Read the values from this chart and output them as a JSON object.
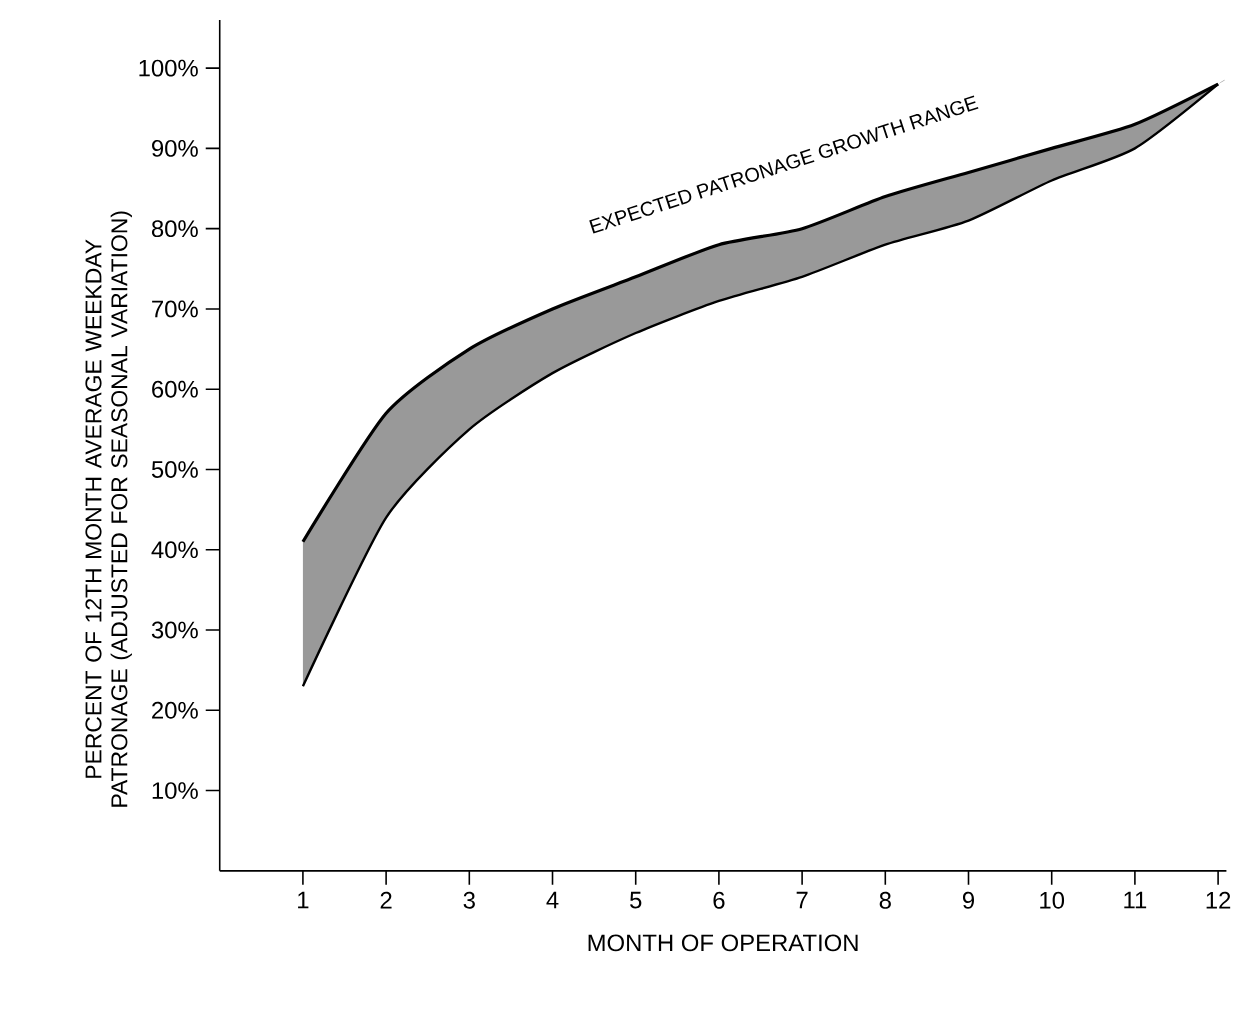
{
  "chart_data": {
    "type": "area",
    "xlabel": "MONTH OF OPERATION",
    "ylabel": "PERCENT OF 12TH MONTH AVERAGE WEEKDAY PATRONAGE (ADJUSTED FOR SEASONAL VARIATION)",
    "x": [
      1,
      2,
      3,
      4,
      5,
      6,
      7,
      8,
      9,
      10,
      11,
      12
    ],
    "color": "#999999",
    "series": [
      {
        "type": "line",
        "color": "#000000",
        "values": [
          41,
          57,
          65,
          70,
          74,
          78,
          80,
          84,
          87,
          90,
          93,
          98
        ]
      },
      {
        "type": "line",
        "color": "#000000",
        "values": [
          23,
          44,
          55,
          62,
          67,
          71,
          74,
          78,
          81,
          86,
          90,
          98
        ]
      }
    ],
    "xlim": [
      0,
      12.1
    ],
    "ylim": [
      0,
      106
    ],
    "xticks": [
      1,
      2,
      3,
      4,
      5,
      6,
      7,
      8,
      9,
      10,
      11,
      12
    ],
    "yticks": [
      {
        "value": 10,
        "label": "10%"
      },
      {
        "value": 20,
        "label": "20%"
      },
      {
        "value": 30,
        "label": "30%"
      },
      {
        "value": 40,
        "label": "40%"
      },
      {
        "value": 50,
        "label": "50%"
      },
      {
        "value": 60,
        "label": "60%"
      },
      {
        "value": 70,
        "label": "70%"
      },
      {
        "value": 80,
        "label": "80%"
      },
      {
        "value": 90,
        "label": "90%"
      },
      {
        "value": 100,
        "label": "100%"
      }
    ],
    "annotations": [
      "EXPECTED PATRONAGE GROWTH RANGE"
    ],
    "grid": false
  }
}
